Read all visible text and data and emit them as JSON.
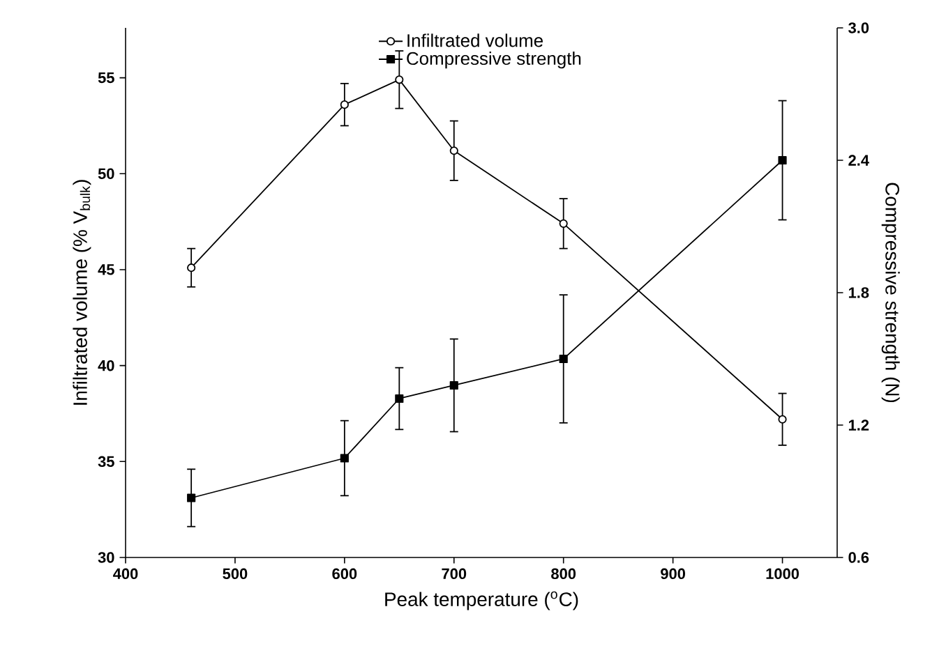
{
  "chart_data": {
    "type": "line",
    "xlabel": "Peak temperature ($^{o}$C)",
    "ylabel": "Infiltrated volume (% V$_{bulk}$)",
    "y2label": "Compressive strength (N)",
    "x": [
      460,
      600,
      650,
      700,
      800,
      1000
    ],
    "xlim": [
      400,
      1050
    ],
    "xticks": [
      400,
      500,
      600,
      700,
      800,
      900,
      1000
    ],
    "ylim": [
      30,
      57.6
    ],
    "yticks": [
      30,
      35,
      40,
      45,
      50,
      55
    ],
    "y2lim": [
      0.6,
      3.0
    ],
    "y2ticks": [
      {
        "value": 0.6,
        "label": "0.6"
      },
      {
        "value": 1.2,
        "label": "1.2"
      },
      {
        "value": 1.8,
        "label": "1.8"
      },
      {
        "value": 2.4,
        "label": "2.4"
      },
      {
        "value": 3.0,
        "label": "3.0"
      }
    ],
    "legend": "top",
    "grid": false,
    "line_style": "solid",
    "series": [
      {
        "name": "Infiltrated volume",
        "color": "#000000",
        "marker": "circle",
        "values": [
          45.1,
          53.6,
          54.9,
          51.2,
          47.4,
          37.2
        ],
        "errors": [
          1.0,
          1.1,
          1.5,
          1.55,
          1.3,
          1.35
        ]
      },
      {
        "name": "Compressive strength",
        "color": "#000000",
        "marker": "square",
        "axis": "y2",
        "values": [
          0.87,
          1.05,
          1.32,
          1.38,
          1.5,
          2.4
        ],
        "errors": [
          0.13,
          0.17,
          0.14,
          0.21,
          0.29,
          0.27
        ]
      }
    ]
  }
}
